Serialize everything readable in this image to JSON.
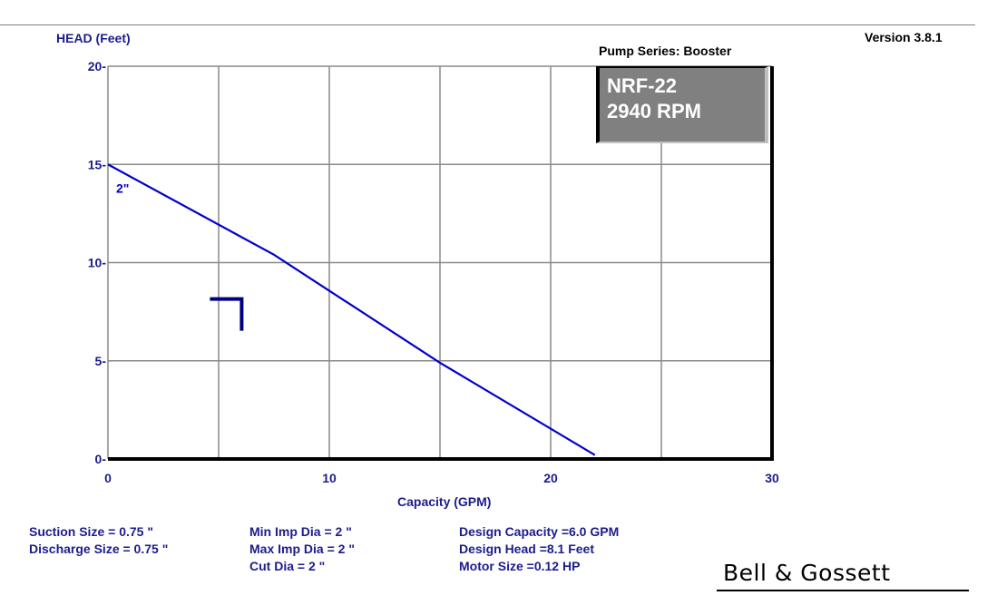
{
  "header": {
    "version": "Version 3.8.1",
    "pump_series": "Pump Series: Booster"
  },
  "model_box": {
    "model": "NRF-22",
    "speed": "2940 RPM"
  },
  "chart_data": {
    "type": "line",
    "ylabel": "HEAD (Feet)",
    "xlabel": "Capacity (GPM)",
    "xlim": [
      0,
      30
    ],
    "ylim": [
      0,
      20
    ],
    "x_ticks": [
      0,
      10,
      20,
      30
    ],
    "y_ticks": [
      0,
      5,
      10,
      15,
      20
    ],
    "x_grid": [
      0,
      5,
      10,
      15,
      20,
      25,
      30
    ],
    "y_grid": [
      0,
      5,
      10,
      15,
      20
    ],
    "grid": true,
    "series": [
      {
        "name": "2\"",
        "color": "#0000cc",
        "points": [
          [
            0,
            15.0
          ],
          [
            7.5,
            10.4
          ],
          [
            15,
            4.9
          ],
          [
            22,
            0.2
          ]
        ]
      }
    ],
    "design_point": {
      "x": 6.0,
      "y": 8.1,
      "color": "#000080"
    }
  },
  "info": {
    "suction_size": "Suction Size = 0.75 \"",
    "discharge_size": "Discharge Size = 0.75 \"",
    "min_imp_dia": "Min Imp Dia = 2 \"",
    "max_imp_dia": "Max Imp Dia = 2 \"",
    "cut_dia": "Cut Dia = 2 \"",
    "design_capacity": "Design Capacity =6.0 GPM",
    "design_head": "Design Head =8.1 Feet",
    "motor_size": "Motor Size =0.12 HP"
  },
  "brand": {
    "name": "Bell & Gossett"
  }
}
